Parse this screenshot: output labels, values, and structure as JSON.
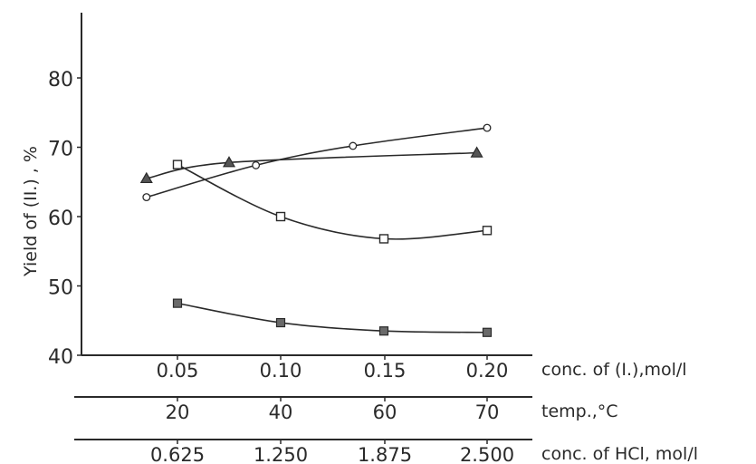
{
  "chart_data": {
    "type": "line",
    "xlabel": "",
    "ylabel": "Yield of (II.) , %",
    "ylim": [
      40,
      85
    ],
    "yticks": [
      "40",
      "50",
      "60",
      "70",
      "80"
    ],
    "grid": false,
    "x_axes": [
      {
        "id": "conc-i",
        "label": "conc. of (I.),mol/l",
        "ticks": [
          "0.05",
          "0.10",
          "0.15",
          "0.20"
        ]
      },
      {
        "id": "temp",
        "label": "temp.,°C",
        "ticks": [
          "20",
          "40",
          "60",
          "70"
        ]
      },
      {
        "id": "conc-hcl",
        "label": "conc. of HCl, mol/l",
        "ticks": [
          "0.625",
          "1.250",
          "1.875",
          "2.500"
        ]
      }
    ],
    "series": [
      {
        "marker": "circle",
        "x": [
          0.035,
          0.088,
          0.135,
          0.2
        ],
        "values": [
          62.8,
          67.4,
          70.2,
          72.8
        ]
      },
      {
        "marker": "triangle",
        "x": [
          0.035,
          0.075,
          0.195
        ],
        "values": [
          65.5,
          67.8,
          69.2
        ]
      },
      {
        "marker": "square-open",
        "x": [
          0.05,
          0.1,
          0.15,
          0.2
        ],
        "values": [
          67.5,
          60.0,
          56.8,
          58.0
        ]
      },
      {
        "marker": "square-filled",
        "x": [
          0.05,
          0.1,
          0.15,
          0.2
        ],
        "values": [
          47.5,
          44.7,
          43.5,
          43.3
        ]
      }
    ]
  }
}
